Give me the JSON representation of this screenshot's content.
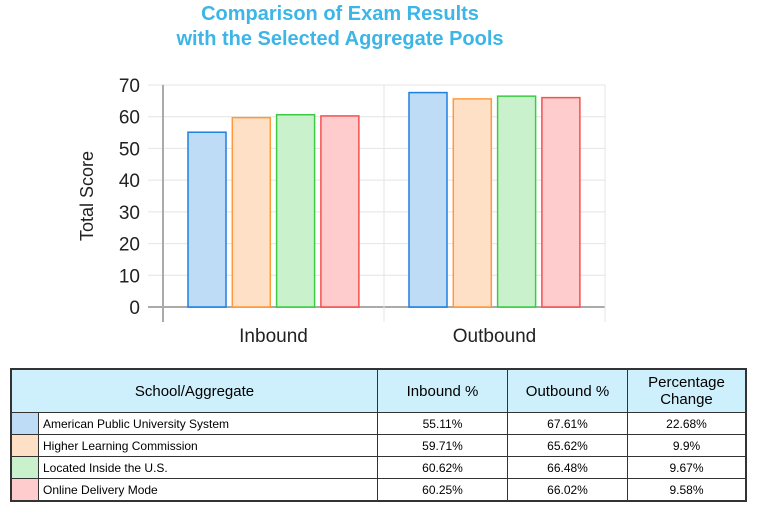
{
  "chart_data": {
    "type": "bar",
    "title": "Comparison of Exam Results with the Selected Aggregate Pools",
    "title_lines": [
      "Comparison of Exam Results",
      "with the Selected Aggregate Pools"
    ],
    "ylabel": "Total Score",
    "xlabel": "",
    "ylim": [
      0,
      70
    ],
    "yticks": [
      0,
      10,
      20,
      30,
      40,
      50,
      60,
      70
    ],
    "grid": true,
    "categories": [
      "Inbound",
      "Outbound"
    ],
    "series": [
      {
        "name": "American Public University System",
        "values": [
          55.11,
          67.61
        ],
        "fill": "#bedcf5",
        "stroke": "#1e7fe0"
      },
      {
        "name": "Higher Learning Commission",
        "values": [
          59.71,
          65.62
        ],
        "fill": "#fde0c6",
        "stroke": "#ff9a3c"
      },
      {
        "name": "Located Inside the U.S.",
        "values": [
          60.62,
          66.48
        ],
        "fill": "#c8f1cc",
        "stroke": "#3ccc44"
      },
      {
        "name": "Online Delivery Mode",
        "values": [
          60.25,
          66.02
        ],
        "fill": "#fecccc",
        "stroke": "#f55050"
      }
    ]
  },
  "table": {
    "headers": [
      "School/Aggregate",
      "Inbound %",
      "Outbound %",
      "Percentage Change"
    ],
    "rows": [
      {
        "name": "American Public University System",
        "inbound": "55.11%",
        "outbound": "67.61%",
        "change": "22.68%",
        "color": "#bedcf5"
      },
      {
        "name": "Higher Learning Commission",
        "inbound": "59.71%",
        "outbound": "65.62%",
        "change": "9.9%",
        "color": "#fde0c6"
      },
      {
        "name": "Located Inside the U.S.",
        "inbound": "60.62%",
        "outbound": "66.48%",
        "change": "9.67%",
        "color": "#c8f1cc"
      },
      {
        "name": "Online Delivery Mode",
        "inbound": "60.25%",
        "outbound": "66.02%",
        "change": "9.58%",
        "color": "#fecccc"
      }
    ]
  }
}
